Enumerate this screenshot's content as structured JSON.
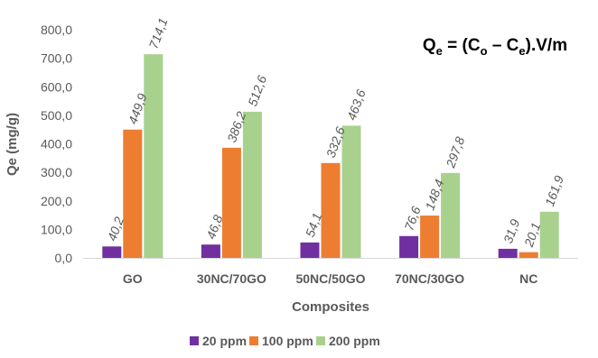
{
  "chart_data": {
    "type": "bar",
    "title": "",
    "xlabel": "Composites",
    "ylabel": "Qe (mg/g)",
    "ylim": [
      0,
      800
    ],
    "yticks": [
      "0,0",
      "100,0",
      "200,0",
      "300,0",
      "400,0",
      "500,0",
      "600,0",
      "700,0",
      "800,0"
    ],
    "grid": false,
    "legend_position": "bottom",
    "categories": [
      "GO",
      "30NC/70GO",
      "50NC/50GO",
      "70NC/30GO",
      "NC"
    ],
    "series": [
      {
        "name": "20 ppm",
        "color": "#7030a0",
        "values": [
          40.2,
          46.8,
          54.1,
          76.6,
          31.9
        ],
        "labels": [
          "40,2",
          "46,8",
          "54,1",
          "76,6",
          "31,9"
        ]
      },
      {
        "name": "100 ppm",
        "color": "#ed7d31",
        "values": [
          449.9,
          386.2,
          332.6,
          148.4,
          20.1
        ],
        "labels": [
          "449,9",
          "386,2",
          "332,6",
          "148,4",
          "20,1"
        ]
      },
      {
        "name": "200 ppm",
        "color": "#a9d18e",
        "values": [
          714.1,
          512.6,
          463.6,
          297.8,
          161.9
        ],
        "labels": [
          "714,1",
          "512,6",
          "463,6",
          "297,8",
          "161,9"
        ]
      }
    ],
    "annotation": {
      "parts": [
        {
          "text": "Q",
          "sub": false
        },
        {
          "text": "e",
          "sub": true
        },
        {
          "text": " = (C",
          "sub": false
        },
        {
          "text": "o",
          "sub": true
        },
        {
          "text": " – C",
          "sub": false
        },
        {
          "text": "e",
          "sub": true
        },
        {
          "text": ").V/m",
          "sub": false
        }
      ]
    }
  }
}
